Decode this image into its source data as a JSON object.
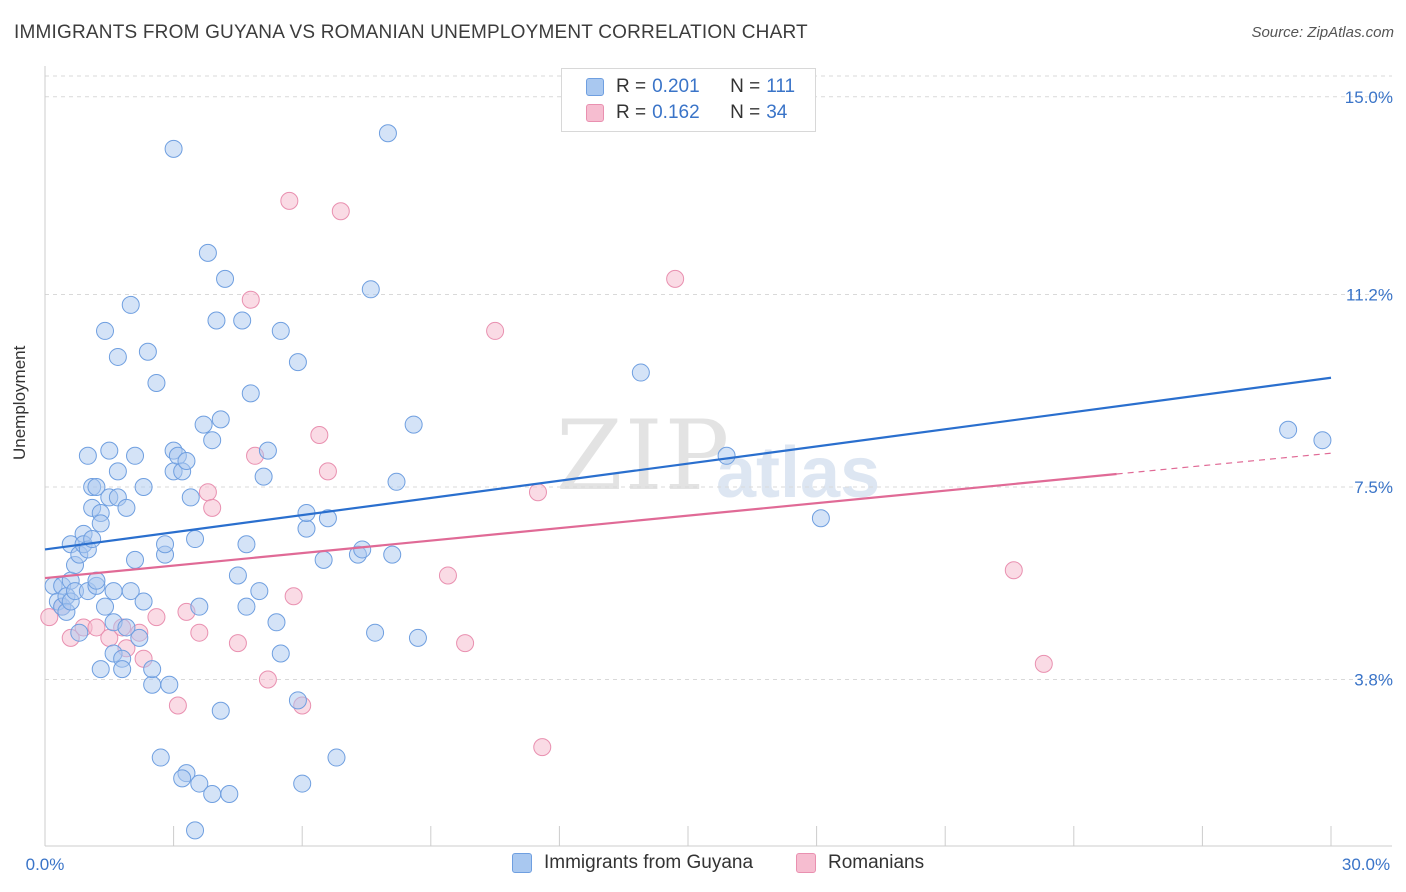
{
  "title": "IMMIGRANTS FROM GUYANA VS ROMANIAN UNEMPLOYMENT CORRELATION CHART",
  "source": "Source: ZipAtlas.com",
  "watermark": "ZIP",
  "watermark2": "atlas",
  "legend": {
    "rows": [
      {
        "r_label": "R =",
        "r_value": "0.201",
        "n_label": "N =",
        "n_value": "111"
      },
      {
        "r_label": "R =",
        "r_value": "0.162",
        "n_label": "N =",
        "n_value": "34"
      }
    ]
  },
  "colors": {
    "blue_fill": "#a9c8f0",
    "blue_stroke": "#6f9fe0",
    "blue_line": "#2a6fce",
    "pink_fill": "#f6bdd0",
    "pink_stroke": "#e990b0",
    "pink_line": "#e06a96",
    "tick_label": "#3a74c8",
    "grid": "#d9d9d9"
  },
  "chart_data": {
    "type": "scatter",
    "ylabel": "Unemployment",
    "xlim": [
      0,
      30
    ],
    "ylim": [
      0.6,
      15.4
    ],
    "x_tick_labels": [
      "0.0%",
      "30.0%"
    ],
    "y_ticks": [
      3.8,
      7.5,
      11.2,
      15.0
    ],
    "y_tick_labels": [
      "3.8%",
      "7.5%",
      "11.2%",
      "15.0%"
    ],
    "grid": "horizontal dashed",
    "legend_position": "top-center",
    "series": [
      {
        "name": "Immigrants from Guyana",
        "color": "#a9c8f0",
        "trend": {
          "x": [
            0,
            30
          ],
          "y": [
            6.3,
            9.6
          ]
        },
        "points": [
          [
            0.2,
            5.6
          ],
          [
            0.3,
            5.3
          ],
          [
            0.4,
            5.6
          ],
          [
            0.4,
            5.2
          ],
          [
            0.5,
            5.4
          ],
          [
            0.5,
            5.1
          ],
          [
            0.6,
            5.3
          ],
          [
            0.6,
            5.7
          ],
          [
            0.6,
            6.4
          ],
          [
            0.7,
            6.0
          ],
          [
            0.7,
            5.5
          ],
          [
            0.8,
            6.2
          ],
          [
            0.8,
            4.7
          ],
          [
            0.9,
            6.6
          ],
          [
            0.9,
            6.4
          ],
          [
            1.0,
            6.3
          ],
          [
            1.0,
            5.5
          ],
          [
            1.0,
            8.1
          ],
          [
            1.1,
            6.5
          ],
          [
            1.1,
            7.5
          ],
          [
            1.1,
            7.1
          ],
          [
            1.2,
            5.6
          ],
          [
            1.2,
            5.7
          ],
          [
            1.2,
            7.5
          ],
          [
            1.3,
            7.0
          ],
          [
            1.3,
            6.8
          ],
          [
            1.3,
            4.0
          ],
          [
            1.4,
            5.2
          ],
          [
            1.4,
            10.5
          ],
          [
            1.5,
            8.2
          ],
          [
            1.5,
            7.3
          ],
          [
            1.6,
            4.9
          ],
          [
            1.6,
            4.3
          ],
          [
            1.6,
            5.5
          ],
          [
            1.7,
            7.8
          ],
          [
            1.7,
            7.3
          ],
          [
            1.7,
            10.0
          ],
          [
            1.8,
            4.2
          ],
          [
            1.8,
            4.0
          ],
          [
            1.9,
            4.8
          ],
          [
            1.9,
            7.1
          ],
          [
            2.0,
            11.0
          ],
          [
            2.0,
            5.5
          ],
          [
            2.1,
            8.1
          ],
          [
            2.2,
            4.6
          ],
          [
            2.3,
            7.5
          ],
          [
            2.3,
            5.3
          ],
          [
            2.4,
            10.1
          ],
          [
            2.5,
            3.7
          ],
          [
            2.5,
            4.0
          ],
          [
            2.6,
            9.5
          ],
          [
            2.7,
            2.3
          ],
          [
            2.8,
            6.2
          ],
          [
            2.8,
            6.4
          ],
          [
            2.9,
            3.7
          ],
          [
            3.0,
            8.2
          ],
          [
            3.0,
            7.8
          ],
          [
            3.0,
            14.0
          ],
          [
            3.1,
            8.1
          ],
          [
            3.2,
            7.8
          ],
          [
            3.3,
            8.0
          ],
          [
            3.3,
            2.0
          ],
          [
            3.4,
            7.3
          ],
          [
            3.5,
            6.5
          ],
          [
            3.5,
            0.9
          ],
          [
            3.6,
            1.8
          ],
          [
            3.6,
            5.2
          ],
          [
            3.7,
            8.7
          ],
          [
            3.8,
            12.0
          ],
          [
            3.9,
            1.6
          ],
          [
            3.9,
            8.4
          ],
          [
            4.0,
            10.7
          ],
          [
            4.1,
            8.8
          ],
          [
            4.1,
            3.2
          ],
          [
            4.2,
            11.5
          ],
          [
            4.5,
            5.8
          ],
          [
            4.6,
            10.7
          ],
          [
            4.7,
            6.4
          ],
          [
            4.7,
            5.2
          ],
          [
            4.8,
            9.3
          ],
          [
            5.0,
            5.5
          ],
          [
            5.1,
            7.7
          ],
          [
            5.2,
            8.2
          ],
          [
            5.4,
            4.9
          ],
          [
            5.5,
            4.3
          ],
          [
            5.5,
            10.5
          ],
          [
            5.9,
            9.9
          ],
          [
            6.0,
            1.8
          ],
          [
            6.1,
            6.7
          ],
          [
            6.1,
            7.0
          ],
          [
            6.5,
            6.1
          ],
          [
            6.6,
            6.9
          ],
          [
            6.8,
            2.3
          ],
          [
            7.3,
            6.2
          ],
          [
            7.4,
            6.3
          ],
          [
            7.6,
            11.3
          ],
          [
            7.7,
            4.7
          ],
          [
            8.0,
            14.3
          ],
          [
            8.1,
            6.2
          ],
          [
            8.2,
            7.6
          ],
          [
            8.6,
            8.7
          ],
          [
            8.7,
            4.6
          ],
          [
            13.9,
            9.7
          ],
          [
            15.9,
            8.1
          ],
          [
            18.1,
            6.9
          ],
          [
            29.0,
            8.6
          ],
          [
            29.8,
            8.4
          ],
          [
            3.2,
            1.9
          ],
          [
            4.3,
            1.6
          ],
          [
            5.9,
            3.4
          ],
          [
            2.1,
            6.1
          ]
        ]
      },
      {
        "name": "Romanians",
        "color": "#f6bdd0",
        "trend": {
          "x": [
            0,
            25
          ],
          "y": [
            5.75,
            7.75
          ]
        },
        "trend_dashed_to": {
          "x": [
            25,
            30
          ],
          "y": [
            7.75,
            8.15
          ]
        },
        "points": [
          [
            0.1,
            5.0
          ],
          [
            0.4,
            5.2
          ],
          [
            0.6,
            4.6
          ],
          [
            0.9,
            4.8
          ],
          [
            1.2,
            4.8
          ],
          [
            1.5,
            4.6
          ],
          [
            1.8,
            4.8
          ],
          [
            1.9,
            4.4
          ],
          [
            2.3,
            4.2
          ],
          [
            2.6,
            5.0
          ],
          [
            3.1,
            3.3
          ],
          [
            3.3,
            5.1
          ],
          [
            3.6,
            4.7
          ],
          [
            3.8,
            7.4
          ],
          [
            3.9,
            7.1
          ],
          [
            4.5,
            4.5
          ],
          [
            4.8,
            11.1
          ],
          [
            4.9,
            8.1
          ],
          [
            5.2,
            3.8
          ],
          [
            5.7,
            13.0
          ],
          [
            5.8,
            5.4
          ],
          [
            6.0,
            3.3
          ],
          [
            6.4,
            8.5
          ],
          [
            6.6,
            7.8
          ],
          [
            6.9,
            12.8
          ],
          [
            9.4,
            5.8
          ],
          [
            9.8,
            4.5
          ],
          [
            10.5,
            10.5
          ],
          [
            11.5,
            7.4
          ],
          [
            11.6,
            2.5
          ],
          [
            14.7,
            11.5
          ],
          [
            22.6,
            5.9
          ],
          [
            23.3,
            4.1
          ],
          [
            2.2,
            4.7
          ]
        ]
      }
    ]
  },
  "bottom_legend": {
    "blue": "Immigrants from Guyana",
    "pink": "Romanians"
  }
}
